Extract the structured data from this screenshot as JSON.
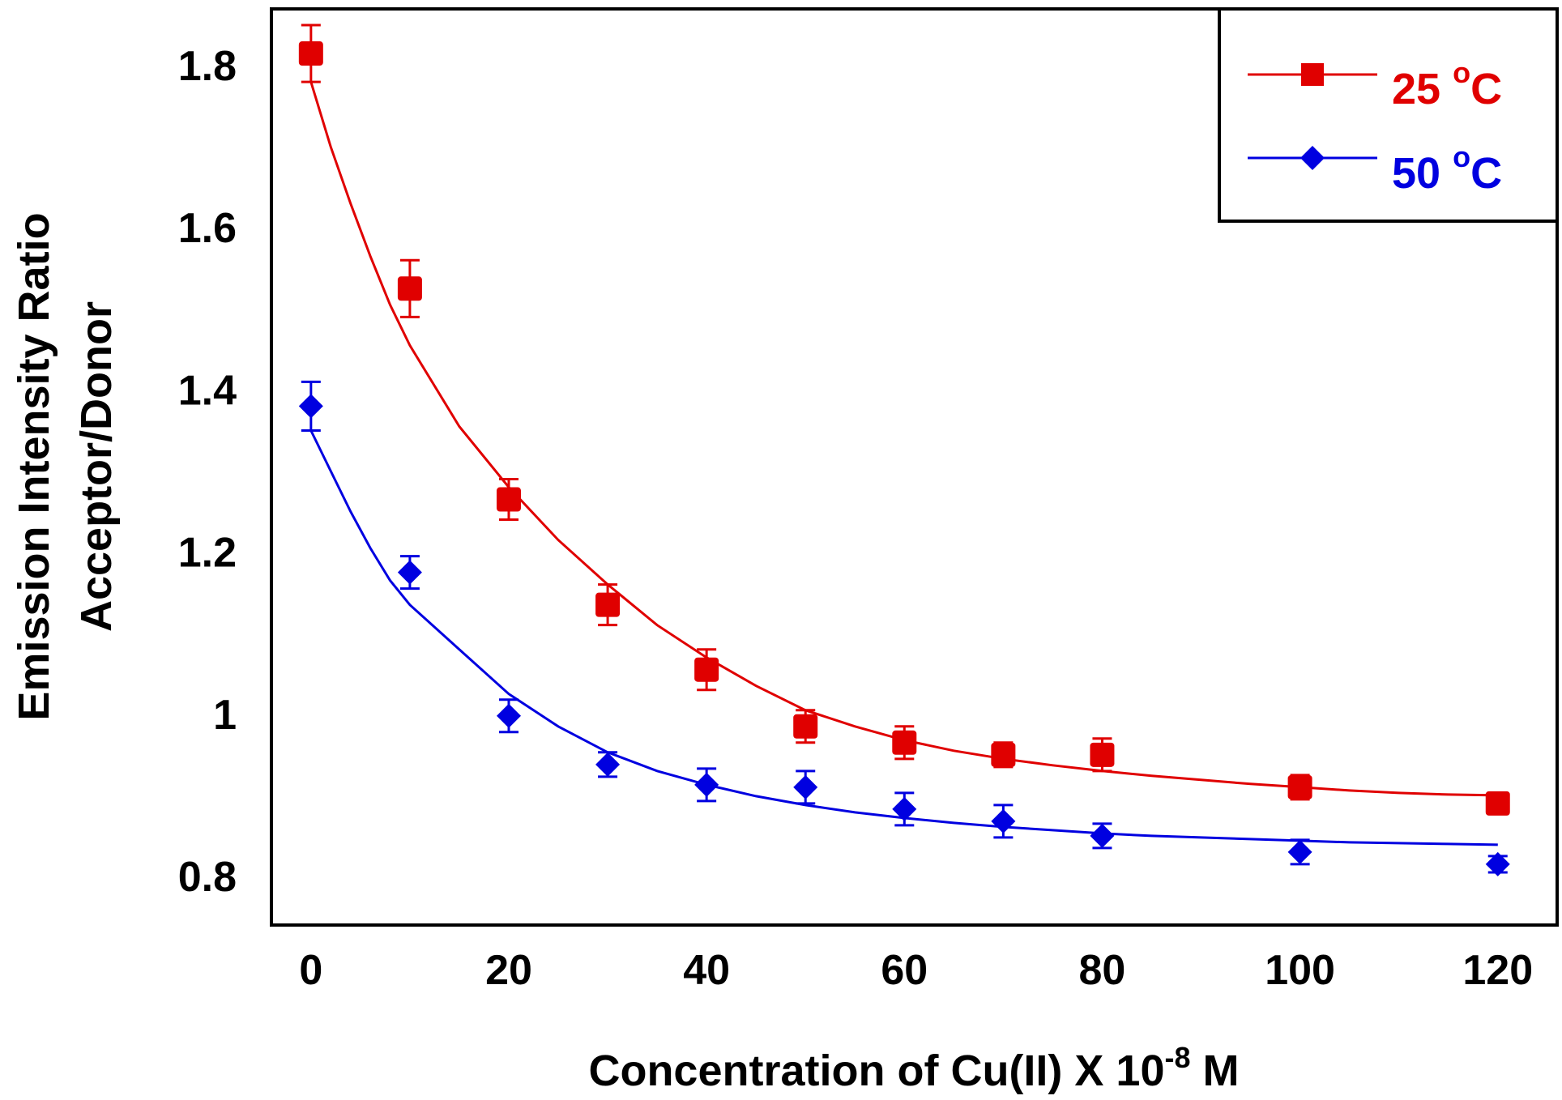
{
  "chart_data": {
    "type": "scatter",
    "title": "",
    "xlabel": {
      "prefix": "Concentration of Cu(II) X 10",
      "exponent": "-8",
      "suffix": " M"
    },
    "ylabel": {
      "line1": "Emission Intensity Ratio",
      "line2": "Acceptor/Donor"
    },
    "xlim": [
      -4,
      126
    ],
    "ylim": [
      0.74,
      1.87
    ],
    "x_ticks": [
      0,
      20,
      40,
      60,
      80,
      100,
      120
    ],
    "x_tick_labels": [
      "0",
      "20",
      "40",
      "60",
      "80",
      "100",
      "120"
    ],
    "y_ticks": [
      0.8,
      1.0,
      1.2,
      1.4,
      1.6,
      1.8
    ],
    "y_tick_labels": [
      "0.8",
      "1",
      "1.2",
      "1.4",
      "1.6",
      "1.8"
    ],
    "grid": false,
    "legend_position": "top-right",
    "series": [
      {
        "name": "25 °C",
        "label_main": "25 ",
        "label_sup": "o",
        "label_unit": "C",
        "color": "#e00000",
        "marker": "square",
        "x": [
          0,
          10,
          20,
          30,
          40,
          50,
          60,
          70,
          80,
          100,
          120
        ],
        "y": [
          1.815,
          1.525,
          1.265,
          1.135,
          1.055,
          0.985,
          0.965,
          0.95,
          0.95,
          0.91,
          0.89
        ],
        "err": [
          0.035,
          0.035,
          0.025,
          0.025,
          0.025,
          0.02,
          0.02,
          0.015,
          0.02,
          0.015,
          0.01
        ],
        "fit_x": [
          0,
          2,
          4,
          6,
          8,
          10,
          15,
          20,
          25,
          30,
          35,
          40,
          45,
          50,
          55,
          60,
          65,
          70,
          75,
          80,
          85,
          90,
          95,
          100,
          105,
          110,
          115,
          120
        ],
        "fit_y": [
          1.78,
          1.7,
          1.63,
          1.565,
          1.505,
          1.455,
          1.355,
          1.28,
          1.215,
          1.16,
          1.11,
          1.07,
          1.035,
          1.005,
          0.985,
          0.968,
          0.955,
          0.945,
          0.937,
          0.93,
          0.924,
          0.919,
          0.914,
          0.91,
          0.906,
          0.903,
          0.901,
          0.9
        ]
      },
      {
        "name": "50 °C",
        "label_main": "50 ",
        "label_sup": "o",
        "label_unit": "C",
        "color": "#0000e0",
        "marker": "diamond",
        "x": [
          0,
          10,
          20,
          30,
          40,
          50,
          60,
          70,
          80,
          100,
          120
        ],
        "y": [
          1.38,
          1.175,
          0.998,
          0.938,
          0.913,
          0.91,
          0.883,
          0.868,
          0.85,
          0.83,
          0.815
        ],
        "err": [
          0.03,
          0.02,
          0.02,
          0.015,
          0.02,
          0.02,
          0.02,
          0.02,
          0.015,
          0.015,
          0.01
        ],
        "fit_x": [
          0,
          2,
          4,
          6,
          8,
          10,
          15,
          20,
          25,
          30,
          35,
          40,
          45,
          50,
          55,
          60,
          65,
          70,
          75,
          80,
          85,
          90,
          95,
          100,
          105,
          110,
          115,
          120
        ],
        "fit_y": [
          1.35,
          1.3,
          1.25,
          1.205,
          1.165,
          1.135,
          1.08,
          1.025,
          0.985,
          0.953,
          0.93,
          0.913,
          0.899,
          0.888,
          0.879,
          0.872,
          0.866,
          0.861,
          0.857,
          0.853,
          0.85,
          0.848,
          0.846,
          0.844,
          0.842,
          0.841,
          0.84,
          0.839
        ]
      }
    ]
  }
}
